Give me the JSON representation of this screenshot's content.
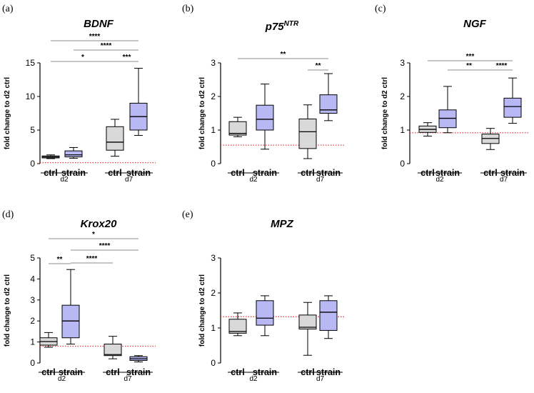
{
  "figure": {
    "ctrl_color": "#d9d9d9",
    "strain_color": "#b8b8f5",
    "reference_line_color": "#e8414a"
  },
  "chart_data": [
    {
      "type": "box",
      "panel": "(a)",
      "title": "BDNF",
      "title_sup": "",
      "ylabel": "fold change to d2 ctrl",
      "ylim": [
        0,
        15
      ],
      "yticks": [
        0,
        5,
        10,
        15
      ],
      "reference_line": 0.15,
      "groups": [
        "d2",
        "d7"
      ],
      "boxes": [
        {
          "group": "d2",
          "category": "ctrl",
          "min": 0.75,
          "q1": 0.85,
          "median": 1.0,
          "q3": 1.15,
          "max": 1.3
        },
        {
          "group": "d2",
          "category": "strain",
          "min": 0.8,
          "q1": 1.0,
          "median": 1.3,
          "q3": 1.9,
          "max": 2.4
        },
        {
          "group": "d7",
          "category": "ctrl",
          "min": 1.1,
          "q1": 2.0,
          "median": 3.2,
          "q3": 5.5,
          "max": 6.6
        },
        {
          "group": "d7",
          "category": "strain",
          "min": 4.2,
          "q1": 5.0,
          "median": 7.0,
          "q3": 9.0,
          "max": 14.2
        }
      ],
      "significance": [
        {
          "from": 0,
          "to": 3,
          "label": "****"
        },
        {
          "from": 1,
          "to": 3,
          "label": "****"
        },
        {
          "from": 0,
          "to": 2,
          "label": "*"
        },
        {
          "from": 2,
          "to": 3,
          "label": "***"
        }
      ]
    },
    {
      "type": "box",
      "panel": "(b)",
      "title": "p75",
      "title_sup": "NTR",
      "ylabel": "fold change to d2 ctrl",
      "ylim": [
        0,
        3
      ],
      "yticks": [
        0,
        1,
        2,
        3
      ],
      "reference_line": 0.55,
      "groups": [
        "d2",
        "d7"
      ],
      "boxes": [
        {
          "group": "d2",
          "category": "ctrl",
          "min": 0.8,
          "q1": 0.85,
          "median": 0.9,
          "q3": 1.25,
          "max": 1.38
        },
        {
          "group": "d2",
          "category": "strain",
          "min": 0.43,
          "q1": 1.0,
          "median": 1.32,
          "q3": 1.74,
          "max": 2.37
        },
        {
          "group": "d7",
          "category": "ctrl",
          "min": 0.15,
          "q1": 0.45,
          "median": 0.95,
          "q3": 1.33,
          "max": 1.75
        },
        {
          "group": "d7",
          "category": "strain",
          "min": 1.28,
          "q1": 1.5,
          "median": 1.6,
          "q3": 2.05,
          "max": 2.68
        }
      ],
      "significance": [
        {
          "from": 0,
          "to": 3,
          "label": "**"
        },
        {
          "from": 2,
          "to": 3,
          "label": "**"
        }
      ]
    },
    {
      "type": "box",
      "panel": "(c)",
      "title": "NGF",
      "title_sup": "",
      "ylabel": "fold change to d2 ctrl",
      "ylim": [
        0,
        3
      ],
      "yticks": [
        0,
        1,
        2,
        3
      ],
      "reference_line": 0.92,
      "groups": [
        "d2",
        "d7"
      ],
      "boxes": [
        {
          "group": "d2",
          "category": "ctrl",
          "min": 0.82,
          "q1": 0.93,
          "median": 1.02,
          "q3": 1.12,
          "max": 1.22
        },
        {
          "group": "d2",
          "category": "strain",
          "min": 0.92,
          "q1": 1.07,
          "median": 1.35,
          "q3": 1.6,
          "max": 2.3
        },
        {
          "group": "d7",
          "category": "ctrl",
          "min": 0.42,
          "q1": 0.6,
          "median": 0.75,
          "q3": 0.88,
          "max": 1.05
        },
        {
          "group": "d7",
          "category": "strain",
          "min": 1.2,
          "q1": 1.38,
          "median": 1.7,
          "q3": 1.95,
          "max": 2.55
        }
      ],
      "significance": [
        {
          "from": 0,
          "to": 3,
          "label": "***"
        },
        {
          "from": 1,
          "to": 2,
          "label": "**"
        },
        {
          "from": 2,
          "to": 3,
          "label": "****"
        }
      ]
    },
    {
      "type": "box",
      "panel": "(d)",
      "title": "Krox20",
      "title_sup": "",
      "ylabel": "fold change to d2 ctrl",
      "ylim": [
        0,
        5
      ],
      "yticks": [
        0,
        1,
        2,
        3,
        4,
        5
      ],
      "reference_line": 0.8,
      "groups": [
        "d2",
        "d7"
      ],
      "boxes": [
        {
          "group": "d2",
          "category": "ctrl",
          "min": 0.75,
          "q1": 0.85,
          "median": 1.02,
          "q3": 1.2,
          "max": 1.45
        },
        {
          "group": "d2",
          "category": "strain",
          "min": 0.9,
          "q1": 1.2,
          "median": 2.0,
          "q3": 2.75,
          "max": 4.45
        },
        {
          "group": "d7",
          "category": "ctrl",
          "min": 0.2,
          "q1": 0.35,
          "median": 0.4,
          "q3": 0.9,
          "max": 1.27
        },
        {
          "group": "d7",
          "category": "strain",
          "min": 0.05,
          "q1": 0.12,
          "median": 0.2,
          "q3": 0.3,
          "max": 0.35
        }
      ],
      "significance": [
        {
          "from": 0,
          "to": 3,
          "label": "*"
        },
        {
          "from": 0,
          "to": 1,
          "label": "**"
        },
        {
          "from": 1,
          "to": 3,
          "label": "****"
        },
        {
          "from": 1,
          "to": 2,
          "label": "****"
        }
      ]
    },
    {
      "type": "box",
      "panel": "(e)",
      "title": "MPZ",
      "title_sup": "",
      "ylabel": "fold change to d2 ctrl",
      "ylim": [
        0,
        3
      ],
      "yticks": [
        0,
        1,
        2,
        3
      ],
      "reference_line": 1.32,
      "groups": [
        "d2",
        "d7"
      ],
      "boxes": [
        {
          "group": "d2",
          "category": "ctrl",
          "min": 0.78,
          "q1": 0.85,
          "median": 0.9,
          "q3": 1.25,
          "max": 1.43
        },
        {
          "group": "d2",
          "category": "strain",
          "min": 0.78,
          "q1": 1.08,
          "median": 1.28,
          "q3": 1.78,
          "max": 1.92
        },
        {
          "group": "d7",
          "category": "ctrl",
          "min": 0.22,
          "q1": 0.97,
          "median": 1.02,
          "q3": 1.37,
          "max": 1.73
        },
        {
          "group": "d7",
          "category": "strain",
          "min": 0.7,
          "q1": 0.93,
          "median": 1.45,
          "q3": 1.78,
          "max": 1.92
        }
      ],
      "significance": []
    }
  ]
}
